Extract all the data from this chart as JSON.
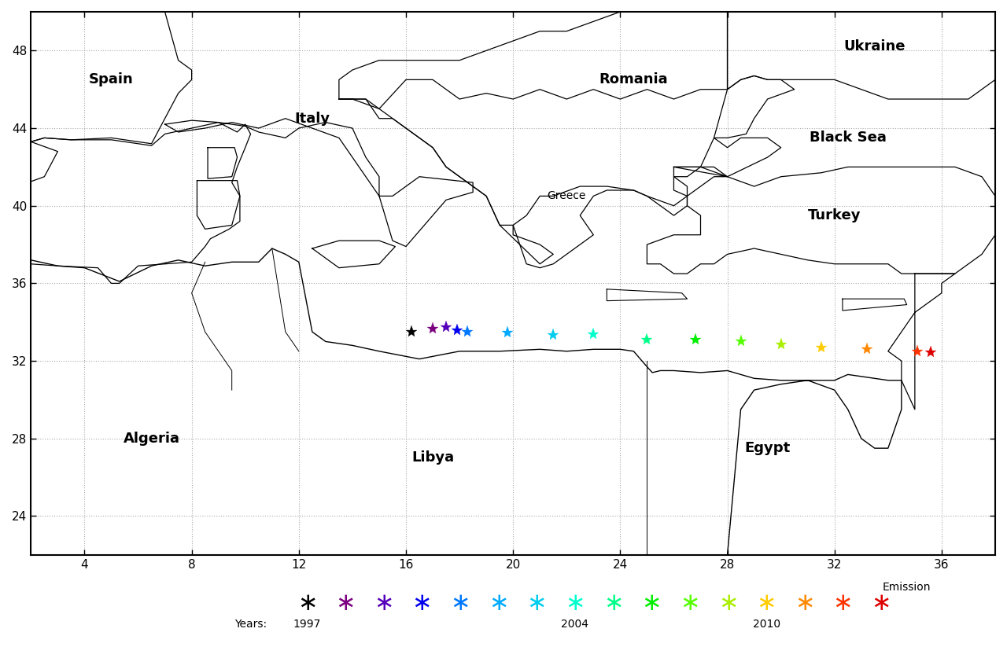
{
  "xlim": [
    2.0,
    38.0
  ],
  "ylim": [
    22.0,
    50.0
  ],
  "xticks": [
    4,
    8,
    12,
    16,
    20,
    24,
    28,
    32,
    36
  ],
  "yticks": [
    24,
    28,
    32,
    36,
    40,
    44,
    48
  ],
  "grid_color": "#aaaaaa",
  "country_labels": [
    {
      "name": "Spain",
      "lon": 5.0,
      "lat": 46.5,
      "fontsize": 13,
      "bold": true
    },
    {
      "name": "Italy",
      "lon": 12.5,
      "lat": 44.5,
      "fontsize": 13,
      "bold": true
    },
    {
      "name": "Romania",
      "lon": 24.5,
      "lat": 46.5,
      "fontsize": 13,
      "bold": true
    },
    {
      "name": "Ukraine",
      "lon": 33.5,
      "lat": 48.2,
      "fontsize": 13,
      "bold": true
    },
    {
      "name": "Black Sea",
      "lon": 32.5,
      "lat": 43.5,
      "fontsize": 13,
      "bold": true
    },
    {
      "name": "Turkey",
      "lon": 32.0,
      "lat": 39.5,
      "fontsize": 13,
      "bold": true
    },
    {
      "name": "Greece",
      "lon": 22.0,
      "lat": 40.5,
      "fontsize": 10,
      "bold": false
    },
    {
      "name": "Algeria",
      "lon": 6.5,
      "lat": 28.0,
      "fontsize": 13,
      "bold": true
    },
    {
      "name": "Libya",
      "lon": 17.0,
      "lat": 27.0,
      "fontsize": 13,
      "bold": true
    },
    {
      "name": "Egypt",
      "lon": 29.5,
      "lat": 27.5,
      "fontsize": 13,
      "bold": true
    }
  ],
  "emission_points": [
    {
      "lon": 16.2,
      "lat": 33.5,
      "color": "#000000"
    },
    {
      "lon": 17.0,
      "lat": 33.65,
      "color": "#7B0080"
    },
    {
      "lon": 17.5,
      "lat": 33.75,
      "color": "#5500BB"
    },
    {
      "lon": 17.9,
      "lat": 33.6,
      "color": "#0000EE"
    },
    {
      "lon": 18.3,
      "lat": 33.5,
      "color": "#0077FF"
    },
    {
      "lon": 19.8,
      "lat": 33.45,
      "color": "#00AAFF"
    },
    {
      "lon": 21.5,
      "lat": 33.35,
      "color": "#00CCEE"
    },
    {
      "lon": 23.0,
      "lat": 33.4,
      "color": "#00FFCC"
    },
    {
      "lon": 25.0,
      "lat": 33.1,
      "color": "#00FF88"
    },
    {
      "lon": 26.8,
      "lat": 33.1,
      "color": "#00EE00"
    },
    {
      "lon": 28.5,
      "lat": 33.0,
      "color": "#55FF00"
    },
    {
      "lon": 30.0,
      "lat": 32.85,
      "color": "#AAEE00"
    },
    {
      "lon": 31.5,
      "lat": 32.7,
      "color": "#FFCC00"
    },
    {
      "lon": 33.2,
      "lat": 32.6,
      "color": "#FF8800"
    },
    {
      "lon": 35.1,
      "lat": 32.5,
      "color": "#FF3300"
    },
    {
      "lon": 35.6,
      "lat": 32.45,
      "color": "#DD0000"
    }
  ],
  "legend_colors": [
    "#000000",
    "#7B0080",
    "#5500BB",
    "#0000EE",
    "#0077FF",
    "#00AAFF",
    "#00CCEE",
    "#00FFCC",
    "#00FF88",
    "#00EE00",
    "#55FF00",
    "#AAEE00",
    "#FFCC00",
    "#FF8800",
    "#FF3300",
    "#DD0000"
  ],
  "legend_year_indices": [
    0,
    7,
    12
  ],
  "legend_year_labels": [
    "1997",
    "2004",
    "2010"
  ],
  "emission_label": "Emission",
  "marker_size": 11,
  "legend_marker_size": 22
}
